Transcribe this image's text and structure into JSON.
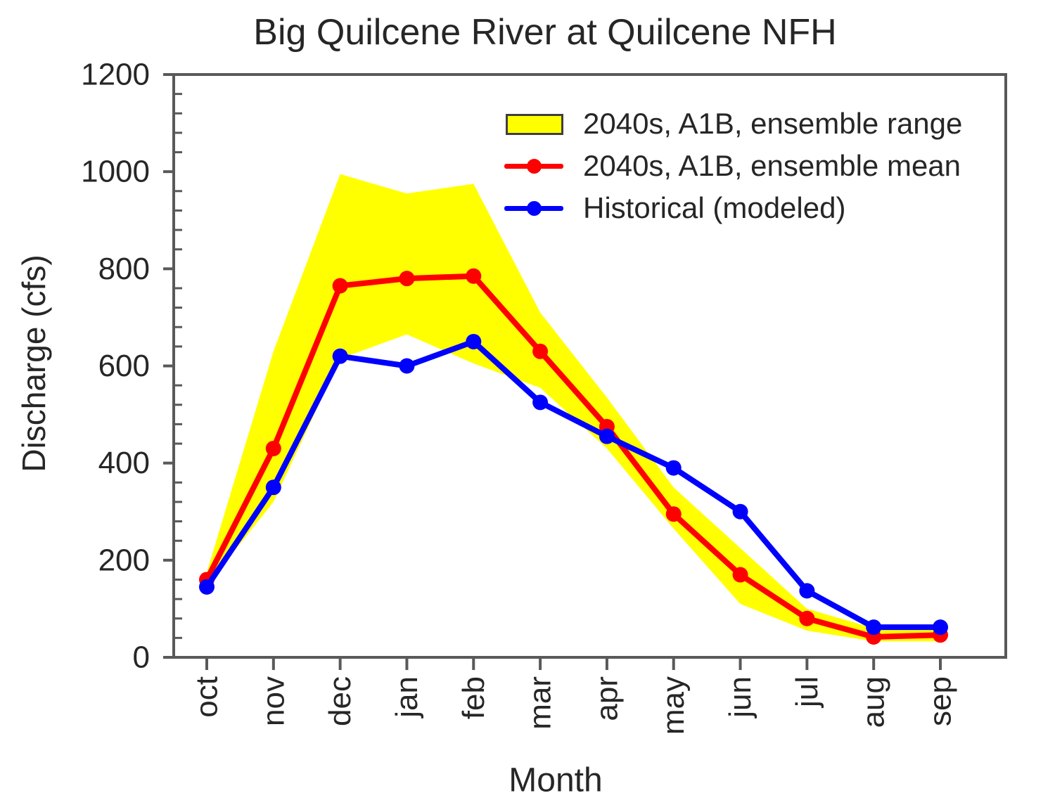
{
  "chart_data": {
    "type": "line",
    "title": "Big Quilcene River at Quilcene NFH",
    "xlabel": "Month",
    "ylabel": "Discharge (cfs)",
    "ylim": [
      0,
      1200
    ],
    "y_ticks": [
      0,
      200,
      400,
      600,
      800,
      1000,
      1200
    ],
    "y_minor_step": 40,
    "grid": false,
    "legend_position": "top-right",
    "categories": [
      "oct",
      "nov",
      "dec",
      "jan",
      "feb",
      "mar",
      "apr",
      "may",
      "jun",
      "jul",
      "aug",
      "sep"
    ],
    "band": {
      "name": "2040s, A1B, ensemble range",
      "color": "#ffff00",
      "upper": [
        175,
        630,
        995,
        955,
        975,
        710,
        535,
        350,
        225,
        100,
        60,
        58
      ],
      "lower": [
        148,
        320,
        615,
        665,
        605,
        555,
        430,
        265,
        110,
        55,
        33,
        33
      ]
    },
    "series": [
      {
        "name": "2040s, A1B, ensemble mean",
        "color": "#ff0000",
        "values": [
          160,
          430,
          765,
          780,
          785,
          630,
          475,
          295,
          170,
          80,
          42,
          46
        ]
      },
      {
        "name": "Historical (modeled)",
        "color": "#0000ff",
        "values": [
          145,
          350,
          620,
          600,
          650,
          525,
          455,
          390,
          300,
          137,
          62,
          62
        ]
      }
    ],
    "colors": {
      "axis": "#595959",
      "text": "#262626"
    }
  }
}
